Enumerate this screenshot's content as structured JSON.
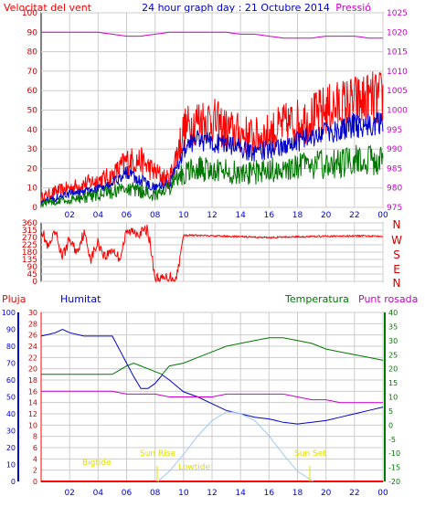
{
  "header": {
    "left_label": "Velocitat del vent",
    "title": "24 hour graph day : 21 Octubre 2014",
    "right_label": "Pressió"
  },
  "colors": {
    "red": "#ff0000",
    "blue": "#0000cc",
    "green": "#007700",
    "magenta": "#cc00cc",
    "yellow": "#e0e000",
    "lightblue": "#a0c8f0",
    "grid": "#cccccc",
    "plot_bg": "#ffffff",
    "frame": "#000000"
  },
  "x_ticks": [
    "02",
    "04",
    "06",
    "08",
    "10",
    "12",
    "14",
    "16",
    "18",
    "20",
    "22",
    "00"
  ],
  "chart_data": [
    {
      "type": "line",
      "panel": "wind",
      "title": "24 hour graph day : 21 Octubre 2014",
      "left_axis": {
        "label": "Velocitat del vent",
        "range": [
          0,
          100
        ],
        "ticks": [
          0,
          10,
          20,
          30,
          40,
          50,
          60,
          70,
          80,
          90,
          100
        ]
      },
      "right_axis": {
        "label": "Pressió",
        "range": [
          975,
          1025
        ],
        "ticks": [
          975,
          980,
          985,
          990,
          995,
          1000,
          1005,
          1010,
          1015,
          1020,
          1025
        ]
      },
      "x_range_hours": [
        0,
        24
      ],
      "series": [
        {
          "color": "red",
          "axis": "left",
          "x": [
            0,
            1,
            2,
            3,
            4,
            5,
            6,
            7,
            8,
            9,
            10,
            11,
            12,
            13,
            14,
            15,
            16,
            17,
            18,
            19,
            20,
            21,
            22,
            23,
            24
          ],
          "values": [
            5,
            8,
            10,
            12,
            14,
            16,
            24,
            24,
            18,
            14,
            40,
            45,
            45,
            40,
            38,
            36,
            38,
            42,
            44,
            46,
            50,
            52,
            54,
            55,
            56
          ]
        },
        {
          "color": "blue",
          "axis": "left",
          "x": [
            0,
            1,
            2,
            3,
            4,
            5,
            6,
            7,
            8,
            9,
            10,
            11,
            12,
            13,
            14,
            15,
            16,
            17,
            18,
            19,
            20,
            21,
            22,
            23,
            24
          ],
          "values": [
            3,
            5,
            7,
            8,
            10,
            12,
            18,
            14,
            10,
            12,
            30,
            34,
            34,
            32,
            30,
            28,
            30,
            32,
            34,
            36,
            38,
            40,
            42,
            43,
            44
          ]
        },
        {
          "color": "green",
          "axis": "left",
          "x": [
            0,
            1,
            2,
            3,
            4,
            5,
            6,
            7,
            8,
            9,
            10,
            11,
            12,
            13,
            14,
            15,
            16,
            17,
            18,
            19,
            20,
            21,
            22,
            23,
            24
          ],
          "values": [
            2,
            3,
            4,
            5,
            6,
            8,
            10,
            8,
            6,
            10,
            18,
            20,
            20,
            19,
            18,
            18,
            19,
            20,
            21,
            22,
            22,
            23,
            24,
            24,
            25
          ]
        },
        {
          "color": "magenta",
          "axis": "right",
          "x": [
            0,
            1,
            2,
            3,
            4,
            5,
            6,
            7,
            8,
            9,
            10,
            11,
            12,
            13,
            14,
            15,
            16,
            17,
            18,
            19,
            20,
            21,
            22,
            23,
            24
          ],
          "values": [
            1020,
            1020,
            1020,
            1020,
            1020,
            1019.5,
            1019,
            1019,
            1019.5,
            1020,
            1020,
            1020,
            1020,
            1020,
            1019.5,
            1019.5,
            1019,
            1018.5,
            1018.5,
            1018.5,
            1019,
            1019,
            1019,
            1018.5,
            1018.5
          ]
        }
      ]
    },
    {
      "type": "line",
      "panel": "direction",
      "left_axis": {
        "range": [
          0,
          360
        ],
        "ticks": [
          0,
          45,
          90,
          135,
          180,
          225,
          270,
          315,
          360
        ]
      },
      "right_axis_letters": [
        "N",
        "W",
        "S",
        "E",
        "N"
      ],
      "x_range_hours": [
        0,
        24
      ],
      "series": [
        {
          "color": "red",
          "x": [
            0,
            0.5,
            1,
            1.5,
            2,
            2.5,
            3,
            3.5,
            4,
            4.5,
            5,
            5.5,
            6,
            6.5,
            7,
            7.5,
            8,
            8.5,
            9,
            9.5,
            10,
            12,
            14,
            16,
            18,
            20,
            22,
            24
          ],
          "values": [
            330,
            200,
            300,
            150,
            260,
            180,
            300,
            140,
            240,
            150,
            200,
            140,
            300,
            310,
            300,
            320,
            20,
            10,
            30,
            20,
            285,
            280,
            275,
            270,
            275,
            278,
            280,
            280
          ]
        }
      ]
    },
    {
      "type": "line",
      "panel": "humidity-temperature",
      "axes": [
        {
          "label": "Pluja",
          "color": "red",
          "range": [
            0,
            30
          ],
          "ticks": [
            0,
            2,
            4,
            6,
            8,
            10,
            12,
            14,
            16,
            18,
            20,
            22,
            24,
            26,
            28,
            30
          ]
        },
        {
          "label": "Humitat",
          "color": "blue",
          "range": [
            0,
            100
          ],
          "ticks": [
            0,
            10,
            20,
            30,
            40,
            50,
            60,
            70,
            80,
            90,
            100
          ]
        },
        {
          "label": "Temperatura",
          "color": "green",
          "range": [
            -20,
            40
          ],
          "ticks": [
            -20,
            -15,
            -10,
            -5,
            0,
            5,
            10,
            15,
            20,
            25,
            30,
            35,
            40
          ]
        },
        {
          "label": "Punt rosada",
          "color": "magenta"
        }
      ],
      "x_range_hours": [
        0,
        24
      ],
      "annotations": [
        "Sun Rise",
        "Sun Set",
        "Lowtide",
        "Bigtide"
      ],
      "series": [
        {
          "color": "blue",
          "axis": "humidity",
          "x": [
            0,
            0.5,
            1,
            1.5,
            2,
            3,
            4,
            5,
            5.5,
            6,
            6.5,
            7,
            7.5,
            8,
            8.5,
            9,
            10,
            11,
            12,
            13,
            14,
            15,
            16,
            16.5,
            17,
            18,
            19,
            20,
            21,
            22,
            23,
            24
          ],
          "values": [
            86,
            87,
            88,
            90,
            88,
            86,
            86,
            86,
            78,
            70,
            62,
            55,
            55,
            58,
            63,
            60,
            53,
            50,
            46,
            42,
            40,
            38,
            37,
            36,
            35,
            34,
            35,
            36,
            38,
            40,
            42,
            44
          ]
        },
        {
          "color": "green",
          "axis": "temperature",
          "x": [
            0,
            1,
            2,
            3,
            4,
            5,
            6,
            6.5,
            7,
            7.5,
            8,
            8.5,
            9,
            10,
            11,
            12,
            13,
            14,
            15,
            16,
            17,
            18,
            19,
            20,
            21,
            22,
            23,
            24
          ],
          "values": [
            18,
            18,
            18,
            18,
            18,
            18,
            21,
            22,
            21,
            20,
            19,
            18,
            21,
            22,
            24,
            26,
            28,
            29,
            30,
            31,
            31,
            30,
            29,
            27,
            26,
            25,
            24,
            23
          ]
        },
        {
          "color": "magenta",
          "axis": "temperature",
          "x": [
            0,
            1,
            2,
            3,
            4,
            5,
            6,
            7,
            8,
            9,
            10,
            11,
            12,
            13,
            14,
            15,
            16,
            17,
            18,
            19,
            20,
            21,
            22,
            23,
            24
          ],
          "values": [
            12,
            12,
            12,
            12,
            12,
            12,
            11,
            11,
            11,
            10,
            10,
            10,
            10,
            11,
            11,
            11,
            11,
            11,
            10,
            9,
            9,
            8,
            8,
            8,
            8
          ]
        },
        {
          "color": "red",
          "axis": "rain",
          "x": [
            0,
            24
          ],
          "values": [
            0,
            0
          ]
        },
        {
          "color": "lightblue",
          "axis": "humidity",
          "x": [
            8.2,
            9,
            10,
            11,
            12,
            13,
            13.5,
            14,
            15,
            16,
            17,
            18,
            19.1
          ],
          "values": [
            0,
            6,
            16,
            27,
            36,
            41,
            41,
            40,
            36,
            27,
            16,
            6,
            0
          ]
        }
      ]
    }
  ]
}
